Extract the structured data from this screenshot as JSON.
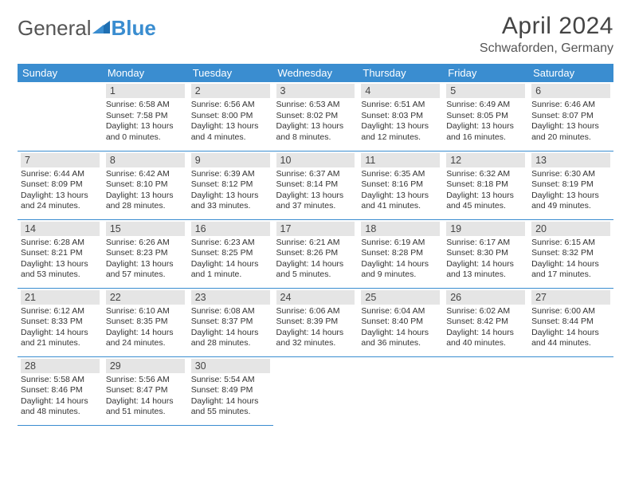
{
  "brand": {
    "part1": "General",
    "part2": "Blue"
  },
  "title": "April 2024",
  "location": "Schwaforden, Germany",
  "colors": {
    "header_bg": "#3a8dd0",
    "header_text": "#ffffff",
    "daynum_bg": "#e5e5e5",
    "text": "#333333",
    "border": "#3a8dd0"
  },
  "weekday_labels": [
    "Sunday",
    "Monday",
    "Tuesday",
    "Wednesday",
    "Thursday",
    "Friday",
    "Saturday"
  ],
  "weeks": [
    [
      null,
      {
        "day": "1",
        "sunrise": "Sunrise: 6:58 AM",
        "sunset": "Sunset: 7:58 PM",
        "daylight": "Daylight: 13 hours and 0 minutes."
      },
      {
        "day": "2",
        "sunrise": "Sunrise: 6:56 AM",
        "sunset": "Sunset: 8:00 PM",
        "daylight": "Daylight: 13 hours and 4 minutes."
      },
      {
        "day": "3",
        "sunrise": "Sunrise: 6:53 AM",
        "sunset": "Sunset: 8:02 PM",
        "daylight": "Daylight: 13 hours and 8 minutes."
      },
      {
        "day": "4",
        "sunrise": "Sunrise: 6:51 AM",
        "sunset": "Sunset: 8:03 PM",
        "daylight": "Daylight: 13 hours and 12 minutes."
      },
      {
        "day": "5",
        "sunrise": "Sunrise: 6:49 AM",
        "sunset": "Sunset: 8:05 PM",
        "daylight": "Daylight: 13 hours and 16 minutes."
      },
      {
        "day": "6",
        "sunrise": "Sunrise: 6:46 AM",
        "sunset": "Sunset: 8:07 PM",
        "daylight": "Daylight: 13 hours and 20 minutes."
      }
    ],
    [
      {
        "day": "7",
        "sunrise": "Sunrise: 6:44 AM",
        "sunset": "Sunset: 8:09 PM",
        "daylight": "Daylight: 13 hours and 24 minutes."
      },
      {
        "day": "8",
        "sunrise": "Sunrise: 6:42 AM",
        "sunset": "Sunset: 8:10 PM",
        "daylight": "Daylight: 13 hours and 28 minutes."
      },
      {
        "day": "9",
        "sunrise": "Sunrise: 6:39 AM",
        "sunset": "Sunset: 8:12 PM",
        "daylight": "Daylight: 13 hours and 33 minutes."
      },
      {
        "day": "10",
        "sunrise": "Sunrise: 6:37 AM",
        "sunset": "Sunset: 8:14 PM",
        "daylight": "Daylight: 13 hours and 37 minutes."
      },
      {
        "day": "11",
        "sunrise": "Sunrise: 6:35 AM",
        "sunset": "Sunset: 8:16 PM",
        "daylight": "Daylight: 13 hours and 41 minutes."
      },
      {
        "day": "12",
        "sunrise": "Sunrise: 6:32 AM",
        "sunset": "Sunset: 8:18 PM",
        "daylight": "Daylight: 13 hours and 45 minutes."
      },
      {
        "day": "13",
        "sunrise": "Sunrise: 6:30 AM",
        "sunset": "Sunset: 8:19 PM",
        "daylight": "Daylight: 13 hours and 49 minutes."
      }
    ],
    [
      {
        "day": "14",
        "sunrise": "Sunrise: 6:28 AM",
        "sunset": "Sunset: 8:21 PM",
        "daylight": "Daylight: 13 hours and 53 minutes."
      },
      {
        "day": "15",
        "sunrise": "Sunrise: 6:26 AM",
        "sunset": "Sunset: 8:23 PM",
        "daylight": "Daylight: 13 hours and 57 minutes."
      },
      {
        "day": "16",
        "sunrise": "Sunrise: 6:23 AM",
        "sunset": "Sunset: 8:25 PM",
        "daylight": "Daylight: 14 hours and 1 minute."
      },
      {
        "day": "17",
        "sunrise": "Sunrise: 6:21 AM",
        "sunset": "Sunset: 8:26 PM",
        "daylight": "Daylight: 14 hours and 5 minutes."
      },
      {
        "day": "18",
        "sunrise": "Sunrise: 6:19 AM",
        "sunset": "Sunset: 8:28 PM",
        "daylight": "Daylight: 14 hours and 9 minutes."
      },
      {
        "day": "19",
        "sunrise": "Sunrise: 6:17 AM",
        "sunset": "Sunset: 8:30 PM",
        "daylight": "Daylight: 14 hours and 13 minutes."
      },
      {
        "day": "20",
        "sunrise": "Sunrise: 6:15 AM",
        "sunset": "Sunset: 8:32 PM",
        "daylight": "Daylight: 14 hours and 17 minutes."
      }
    ],
    [
      {
        "day": "21",
        "sunrise": "Sunrise: 6:12 AM",
        "sunset": "Sunset: 8:33 PM",
        "daylight": "Daylight: 14 hours and 21 minutes."
      },
      {
        "day": "22",
        "sunrise": "Sunrise: 6:10 AM",
        "sunset": "Sunset: 8:35 PM",
        "daylight": "Daylight: 14 hours and 24 minutes."
      },
      {
        "day": "23",
        "sunrise": "Sunrise: 6:08 AM",
        "sunset": "Sunset: 8:37 PM",
        "daylight": "Daylight: 14 hours and 28 minutes."
      },
      {
        "day": "24",
        "sunrise": "Sunrise: 6:06 AM",
        "sunset": "Sunset: 8:39 PM",
        "daylight": "Daylight: 14 hours and 32 minutes."
      },
      {
        "day": "25",
        "sunrise": "Sunrise: 6:04 AM",
        "sunset": "Sunset: 8:40 PM",
        "daylight": "Daylight: 14 hours and 36 minutes."
      },
      {
        "day": "26",
        "sunrise": "Sunrise: 6:02 AM",
        "sunset": "Sunset: 8:42 PM",
        "daylight": "Daylight: 14 hours and 40 minutes."
      },
      {
        "day": "27",
        "sunrise": "Sunrise: 6:00 AM",
        "sunset": "Sunset: 8:44 PM",
        "daylight": "Daylight: 14 hours and 44 minutes."
      }
    ],
    [
      {
        "day": "28",
        "sunrise": "Sunrise: 5:58 AM",
        "sunset": "Sunset: 8:46 PM",
        "daylight": "Daylight: 14 hours and 48 minutes."
      },
      {
        "day": "29",
        "sunrise": "Sunrise: 5:56 AM",
        "sunset": "Sunset: 8:47 PM",
        "daylight": "Daylight: 14 hours and 51 minutes."
      },
      {
        "day": "30",
        "sunrise": "Sunrise: 5:54 AM",
        "sunset": "Sunset: 8:49 PM",
        "daylight": "Daylight: 14 hours and 55 minutes."
      },
      null,
      null,
      null,
      null
    ]
  ]
}
